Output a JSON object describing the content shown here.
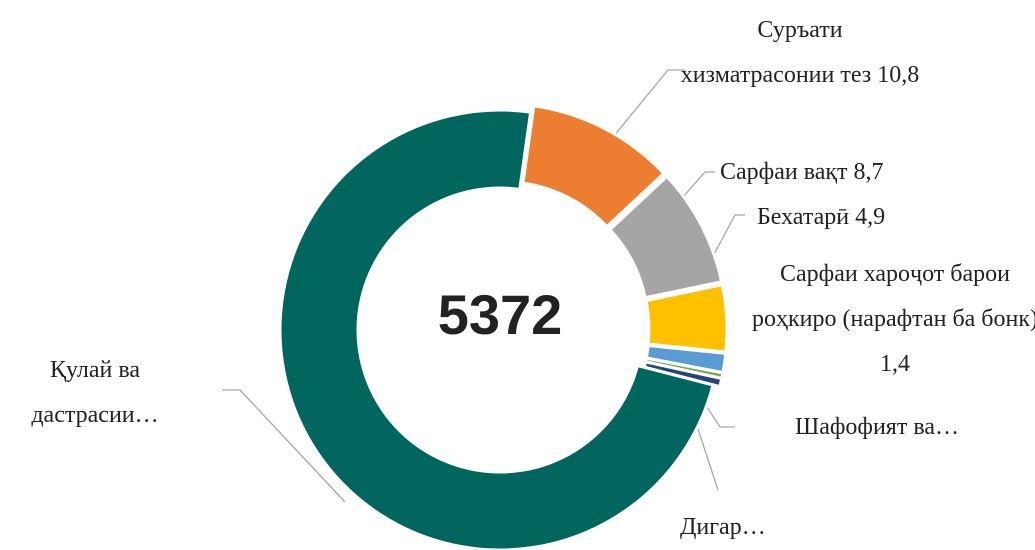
{
  "chart_data": {
    "type": "donut",
    "center_label": "5372",
    "categories": [
      "Суръати хизматрасонии тез",
      "Сарфаи вақт",
      "Бехатарӣ",
      "Сарфаи хароҷот барои роҳкиро (нарафтан ба бонк)",
      "Шафофият ва…",
      "Дигар…",
      "Қулай ва дастрасии…"
    ],
    "values": [
      10.8,
      8.7,
      4.9,
      1.4,
      0.4,
      0.6,
      73.2
    ],
    "value_labels": [
      "10,8",
      "8,7",
      "4,9",
      "1,4",
      null,
      null,
      null
    ],
    "colors": [
      "#ed7d31",
      "#a5a5a5",
      "#ffc000",
      "#5b9bd5",
      "#70ad47",
      "#264478",
      "#00665e"
    ]
  }
}
